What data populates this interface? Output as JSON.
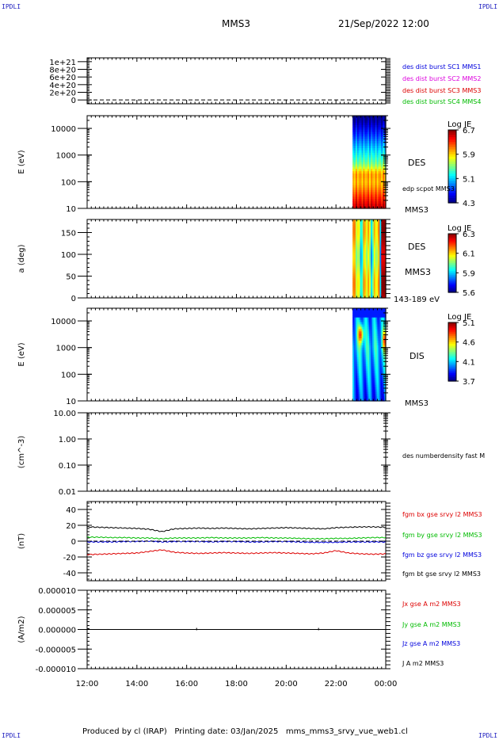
{
  "header": {
    "corner_label": "IPDLI",
    "spacecraft": "MMS3",
    "datetime": "21/Sep/2022 12:00"
  },
  "footer": {
    "text": "Produced by cl (IRAP)   Printing date: 03/Jan/2025   mms_mms3_srvy_vue_web1.cl"
  },
  "colors": {
    "mms1": "#0000dd",
    "mms2": "#dd00dd",
    "mms3": "#dd0000",
    "mms4": "#00bb00",
    "bx": "#dd0000",
    "by": "#00bb00",
    "bz": "#0000dd",
    "bt": "#000000"
  },
  "chart_data": [
    {
      "id": "panel1",
      "type": "line",
      "ylabel": "",
      "ylim": [
        -1e+20,
        1.1e+21
      ],
      "yticks": [
        "1e+21",
        "8e+20",
        "6e+20",
        "4e+20",
        "2e+20",
        "0"
      ],
      "ytick_values": [
        1e+21,
        8e+20,
        6e+20,
        4e+20,
        2e+20,
        0
      ],
      "legend": [
        {
          "text": "des dist burst SC1 MMS1",
          "color": "#0000dd"
        },
        {
          "text": "des dist burst SC2 MMS2",
          "color": "#dd00dd"
        },
        {
          "text": "des dist burst SC3 MMS3",
          "color": "#dd0000"
        },
        {
          "text": "des dist burst SC4 MMS4",
          "color": "#00bb00"
        }
      ],
      "series": [
        {
          "values": [
            0,
            0
          ]
        }
      ]
    },
    {
      "id": "panel2",
      "type": "heatmap",
      "ylabel": "E (eV)",
      "yscale": "log",
      "ylim": [
        10,
        30000
      ],
      "yticks": [
        "10000",
        "1000",
        "100",
        "10"
      ],
      "ytick_values": [
        10000,
        1000,
        100,
        10
      ],
      "data_x_start": "22:40",
      "right_labels": [
        "DES",
        "edp scpot MMS3",
        "MMS3"
      ],
      "colorbar": {
        "title": "Log JE",
        "ticks": [
          "6.7",
          "5.9",
          "5.1",
          "4.3"
        ],
        "range": [
          4.3,
          6.7
        ]
      }
    },
    {
      "id": "panel3",
      "type": "heatmap",
      "ylabel": "a (deg)",
      "ylim": [
        0,
        180
      ],
      "yticks": [
        "150",
        "100",
        "50",
        "0"
      ],
      "ytick_values": [
        150,
        100,
        50,
        0
      ],
      "data_x_start": "22:40",
      "right_labels": [
        "DES",
        "MMS3",
        "143-189 eV"
      ],
      "colorbar": {
        "title": "Log JE",
        "ticks": [
          "6.3",
          "6.1",
          "5.9",
          "5.6"
        ],
        "range": [
          5.6,
          6.3
        ]
      }
    },
    {
      "id": "panel4",
      "type": "heatmap",
      "ylabel": "E (eV)",
      "yscale": "log",
      "ylim": [
        10,
        30000
      ],
      "yticks": [
        "10000",
        "1000",
        "100",
        "10"
      ],
      "ytick_values": [
        10000,
        1000,
        100,
        10
      ],
      "data_x_start": "22:40",
      "right_labels": [
        "DIS",
        "MMS3"
      ],
      "colorbar": {
        "title": "Log JE",
        "ticks": [
          "5.1",
          "4.6",
          "4.1",
          "3.7"
        ],
        "range": [
          3.7,
          5.1
        ]
      }
    },
    {
      "id": "panel5",
      "type": "line",
      "ylabel": "(cm^-3)",
      "yscale": "log",
      "ylim": [
        0.01,
        10
      ],
      "yticks": [
        "10.00",
        "1.00",
        "0.10",
        "0.01"
      ],
      "ytick_values": [
        10,
        1,
        0.1,
        0.01
      ],
      "legend": [
        {
          "text": "des numberdensity fast M",
          "color": "#000000"
        }
      ]
    },
    {
      "id": "panel6",
      "type": "line",
      "ylabel": "(nT)",
      "ylim": [
        -50,
        50
      ],
      "yticks": [
        "40",
        "20",
        "0",
        "-20",
        "-40"
      ],
      "ytick_values": [
        40,
        20,
        0,
        -20,
        -40
      ],
      "legend": [
        {
          "text": "fgm bx gse srvy l2 MMS3",
          "color": "#dd0000"
        },
        {
          "text": "fgm by gse srvy l2 MMS3",
          "color": "#00bb00"
        },
        {
          "text": "fgm bz gse srvy l2 MMS3",
          "color": "#0000dd"
        },
        {
          "text": "fgm bt gse srvy l2 MMS3",
          "color": "#000000"
        }
      ],
      "series": [
        {
          "color": "#000000",
          "values": [
            18,
            17.5,
            17,
            16.5,
            16,
            15,
            12,
            15.5,
            16,
            16.5,
            16,
            16.5,
            16,
            15.5,
            16,
            16.5,
            17,
            16.5,
            16,
            15.5,
            17,
            17.5,
            18,
            18,
            17.5
          ]
        },
        {
          "color": "#00bb00",
          "values": [
            5,
            5,
            4.5,
            4.5,
            4,
            4,
            3,
            4,
            4,
            4,
            4.5,
            4,
            4,
            4,
            4.5,
            4,
            4,
            3.5,
            3,
            3,
            3.5,
            3.5,
            4,
            4.5,
            4.5
          ]
        },
        {
          "color": "#0000dd",
          "values": [
            -1,
            -1,
            -1,
            -0.5,
            -0.5,
            0,
            -1,
            -0.5,
            -0.5,
            -0.5,
            -1,
            -0.5,
            -0.5,
            -1,
            -1,
            -0.5,
            -0.5,
            -1,
            -1.5,
            -1.5,
            -1.5,
            -1,
            -1,
            -1,
            -1
          ]
        },
        {
          "color": "#dd0000",
          "values": [
            -17,
            -16.5,
            -16,
            -15.5,
            -15,
            -13,
            -11,
            -14,
            -15,
            -15.5,
            -15,
            -14.5,
            -15,
            -15.5,
            -15,
            -14.5,
            -15,
            -15.5,
            -16,
            -15,
            -12,
            -15,
            -16,
            -16.5,
            -16
          ]
        }
      ]
    },
    {
      "id": "panel7",
      "type": "line",
      "ylabel": "(A/m2)",
      "ylim": [
        -1e-05,
        1e-05
      ],
      "yticks": [
        "0.000010",
        "0.000005",
        "0.000000",
        "-0.000005",
        "-0.000010"
      ],
      "ytick_values": [
        1e-05,
        5e-06,
        0,
        -5e-06,
        -1e-05
      ],
      "legend": [
        {
          "text": "Jx gse A m2 MMS3",
          "color": "#dd0000"
        },
        {
          "text": "Jy gse A m2 MMS3",
          "color": "#00bb00"
        },
        {
          "text": "Jz gse A m2 MMS3",
          "color": "#0000dd"
        },
        {
          "text": "J A m2 MMS3",
          "color": "#000000"
        }
      ],
      "series": [
        {
          "color": "#000000",
          "values": [
            0,
            0
          ]
        }
      ]
    }
  ],
  "x_axis": {
    "tick_labels": [
      "12:00",
      "14:00",
      "16:00",
      "18:00",
      "20:00",
      "22:00",
      "00:00"
    ],
    "range_hours": [
      12,
      24
    ]
  }
}
